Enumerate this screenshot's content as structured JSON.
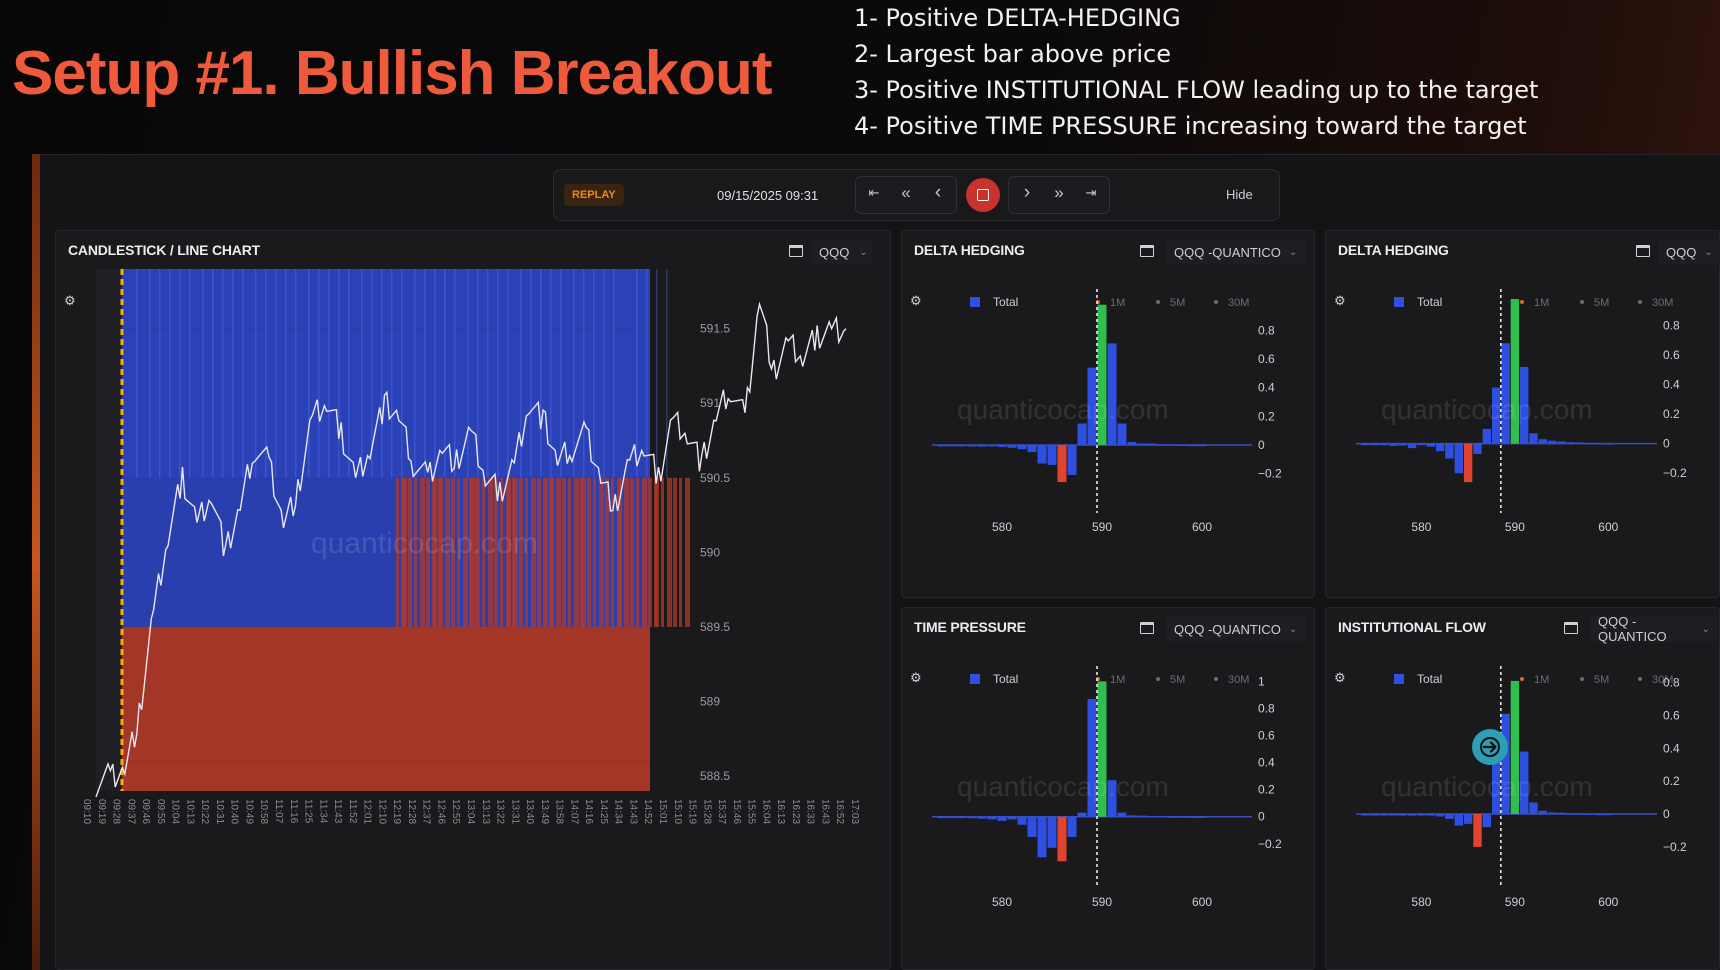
{
  "slide": {
    "title": "Setup #1. Bullish Breakout",
    "notes": [
      "1- Positive DELTA-HEDGING",
      "2- Largest bar above price",
      "3- Positive INSTITUTIONAL FLOW leading up to the target",
      "4- Positive TIME PRESSURE increasing toward the target"
    ]
  },
  "replay": {
    "badge": "REPLAY",
    "datetime": "09/15/2025 09:31",
    "buttons": {
      "first": "⇤",
      "rewind": "«",
      "prev": "‹",
      "next": "›",
      "fast_forward": "»",
      "last": "⇥"
    },
    "hide_label": "Hide"
  },
  "watermark": "quanticocap.com",
  "main_chart": {
    "title": "CANDLESTICK / LINE CHART",
    "symbol": "QQQ",
    "chart_data": {
      "type": "line",
      "title": "CANDLESTICK / LINE CHART",
      "y_ticks": [
        "591.5",
        "591",
        "590.5",
        "590",
        "589.5",
        "589",
        "588.5"
      ],
      "ylim": [
        588.4,
        591.9
      ],
      "x_ticks": [
        "09:10",
        "09:19",
        "09:28",
        "09:37",
        "09:46",
        "09:55",
        "10:04",
        "10:13",
        "10:22",
        "10:31",
        "10:40",
        "10:49",
        "10:58",
        "11:07",
        "11:16",
        "11:25",
        "11:34",
        "11:43",
        "11:52",
        "12:01",
        "12:10",
        "12:19",
        "12:28",
        "12:37",
        "12:46",
        "12:55",
        "13:04",
        "13:13",
        "13:22",
        "13:31",
        "13:40",
        "13:49",
        "13:58",
        "14:07",
        "14:16",
        "14:25",
        "14:34",
        "14:43",
        "14:52",
        "15:01",
        "15:10",
        "15:19",
        "15:28",
        "15:37",
        "15:46",
        "15:55",
        "16:04",
        "16:13",
        "16:23",
        "16:33",
        "16:43",
        "16:52",
        "17:03"
      ],
      "price": [
        588.45,
        588.5,
        588.55,
        588.9,
        589.6,
        590.1,
        590.5,
        590.2,
        590.4,
        590.0,
        590.3,
        590.7,
        590.6,
        590.2,
        590.4,
        590.9,
        591.0,
        590.8,
        590.5,
        590.7,
        591.0,
        590.9,
        590.6,
        590.5,
        590.7,
        590.6,
        590.8,
        590.5,
        590.4,
        590.6,
        591.0,
        590.9,
        590.6,
        590.7,
        590.8,
        590.5,
        590.3,
        590.6,
        590.7,
        590.5,
        590.9,
        590.8,
        590.6,
        590.9,
        591.1,
        590.9,
        591.7,
        591.2,
        591.4,
        591.3,
        591.45,
        591.5,
        591.5
      ],
      "heatmap_bands": [
        {
          "from": 591.5,
          "to": 591.9,
          "tone": "blue"
        },
        {
          "from": 590.5,
          "to": 591.5,
          "tone": "blue"
        },
        {
          "from": 589.5,
          "to": 590.5,
          "tone": "mixed"
        },
        {
          "from": 588.6,
          "to": 589.5,
          "tone": "red"
        },
        {
          "from": 588.4,
          "to": 588.6,
          "tone": "red"
        }
      ],
      "colors": {
        "blue": "#2d46c8",
        "red": "#b23a28",
        "price": "#e8e8ee",
        "marker": "#f0b400"
      }
    }
  },
  "panels": [
    {
      "id": "delta-hedging-1",
      "title": "DELTA HEDGING",
      "symbol": "QQQ -QUANTICO",
      "chart_data": {
        "type": "bar",
        "legend": [
          "Total",
          "1M",
          "5M",
          "30M"
        ],
        "x_ticks": [
          "580",
          "590",
          "600"
        ],
        "xlim": [
          573,
          602
        ],
        "y_ticks": [
          "0.8",
          "0.6",
          "0.4",
          "0.2",
          "0",
          "−0.2"
        ],
        "ylim": [
          -0.28,
          1.02
        ],
        "price_line": 589.5,
        "bin_width": 0.9,
        "bars": [
          {
            "x": 574,
            "v": -0.005,
            "c": "blue"
          },
          {
            "x": 575,
            "v": -0.01,
            "c": "blue"
          },
          {
            "x": 576,
            "v": -0.008,
            "c": "blue"
          },
          {
            "x": 577,
            "v": -0.01,
            "c": "blue"
          },
          {
            "x": 578,
            "v": -0.012,
            "c": "blue"
          },
          {
            "x": 579,
            "v": -0.01,
            "c": "blue"
          },
          {
            "x": 580,
            "v": -0.015,
            "c": "blue"
          },
          {
            "x": 581,
            "v": -0.02,
            "c": "blue"
          },
          {
            "x": 582,
            "v": -0.03,
            "c": "blue"
          },
          {
            "x": 583,
            "v": -0.05,
            "c": "blue"
          },
          {
            "x": 584,
            "v": -0.13,
            "c": "blue"
          },
          {
            "x": 585,
            "v": -0.14,
            "c": "blue"
          },
          {
            "x": 586,
            "v": -0.26,
            "c": "red"
          },
          {
            "x": 587,
            "v": -0.21,
            "c": "blue"
          },
          {
            "x": 588,
            "v": 0.15,
            "c": "blue"
          },
          {
            "x": 589,
            "v": 0.54,
            "c": "blue"
          },
          {
            "x": 590,
            "v": 0.98,
            "c": "green"
          },
          {
            "x": 591,
            "v": 0.71,
            "c": "blue"
          },
          {
            "x": 592,
            "v": 0.15,
            "c": "blue"
          },
          {
            "x": 593,
            "v": 0.02,
            "c": "blue"
          },
          {
            "x": 594,
            "v": 0.01,
            "c": "blue"
          },
          {
            "x": 595,
            "v": 0.01,
            "c": "blue"
          },
          {
            "x": 596,
            "v": 0.005,
            "c": "blue"
          },
          {
            "x": 597,
            "v": 0.005,
            "c": "blue"
          },
          {
            "x": 598,
            "v": 0.003,
            "c": "blue"
          },
          {
            "x": 599,
            "v": 0.002,
            "c": "blue"
          },
          {
            "x": 600,
            "v": 0.002,
            "c": "blue"
          }
        ]
      }
    },
    {
      "id": "delta-hedging-2",
      "title": "DELTA HEDGING",
      "symbol": "QQQ",
      "chart_data": {
        "type": "bar",
        "legend": [
          "Total",
          "1M",
          "5M",
          "30M"
        ],
        "x_ticks": [
          "580",
          "590",
          "600"
        ],
        "xlim": [
          573,
          602
        ],
        "y_ticks": [
          "0.8",
          "0.6",
          "0.4",
          "0.2",
          "0",
          "−0.2"
        ],
        "ylim": [
          -0.28,
          0.98
        ],
        "price_line": 588.5,
        "bin_width": 0.9,
        "bars": [
          {
            "x": 574,
            "v": -0.005,
            "c": "blue"
          },
          {
            "x": 575,
            "v": -0.01,
            "c": "blue"
          },
          {
            "x": 576,
            "v": -0.008,
            "c": "blue"
          },
          {
            "x": 577,
            "v": -0.015,
            "c": "blue"
          },
          {
            "x": 578,
            "v": -0.012,
            "c": "blue"
          },
          {
            "x": 579,
            "v": -0.03,
            "c": "blue"
          },
          {
            "x": 580,
            "v": -0.01,
            "c": "blue"
          },
          {
            "x": 581,
            "v": -0.02,
            "c": "blue"
          },
          {
            "x": 582,
            "v": -0.05,
            "c": "blue"
          },
          {
            "x": 583,
            "v": -0.1,
            "c": "blue"
          },
          {
            "x": 584,
            "v": -0.2,
            "c": "blue"
          },
          {
            "x": 585,
            "v": -0.26,
            "c": "red"
          },
          {
            "x": 586,
            "v": -0.07,
            "c": "blue"
          },
          {
            "x": 587,
            "v": 0.1,
            "c": "blue"
          },
          {
            "x": 588,
            "v": 0.38,
            "c": "blue"
          },
          {
            "x": 589,
            "v": 0.68,
            "c": "blue"
          },
          {
            "x": 590,
            "v": 0.98,
            "c": "green"
          },
          {
            "x": 591,
            "v": 0.52,
            "c": "blue"
          },
          {
            "x": 592,
            "v": 0.07,
            "c": "blue"
          },
          {
            "x": 593,
            "v": 0.03,
            "c": "blue"
          },
          {
            "x": 594,
            "v": 0.02,
            "c": "blue"
          },
          {
            "x": 595,
            "v": 0.015,
            "c": "blue"
          },
          {
            "x": 596,
            "v": 0.01,
            "c": "blue"
          },
          {
            "x": 597,
            "v": 0.008,
            "c": "blue"
          },
          {
            "x": 598,
            "v": 0.005,
            "c": "blue"
          },
          {
            "x": 599,
            "v": 0.005,
            "c": "blue"
          },
          {
            "x": 600,
            "v": 0.003,
            "c": "blue"
          }
        ]
      }
    },
    {
      "id": "time-pressure",
      "title": "TIME PRESSURE",
      "symbol": "QQQ -QUANTICO",
      "chart_data": {
        "type": "bar",
        "legend": [
          "Total",
          "1M",
          "5M",
          "30M"
        ],
        "x_ticks": [
          "580",
          "590",
          "600"
        ],
        "xlim": [
          573,
          602
        ],
        "y_ticks": [
          "1",
          "0.8",
          "0.6",
          "0.4",
          "0.2",
          "0",
          "−0.2"
        ],
        "ylim": [
          -0.32,
          1.04
        ],
        "price_line": 589.5,
        "bin_width": 0.9,
        "bars": [
          {
            "x": 574,
            "v": -0.005,
            "c": "blue"
          },
          {
            "x": 575,
            "v": -0.01,
            "c": "blue"
          },
          {
            "x": 576,
            "v": -0.01,
            "c": "blue"
          },
          {
            "x": 577,
            "v": -0.01,
            "c": "blue"
          },
          {
            "x": 578,
            "v": -0.015,
            "c": "blue"
          },
          {
            "x": 579,
            "v": -0.02,
            "c": "blue"
          },
          {
            "x": 580,
            "v": -0.03,
            "c": "blue"
          },
          {
            "x": 581,
            "v": -0.02,
            "c": "blue"
          },
          {
            "x": 582,
            "v": -0.06,
            "c": "blue"
          },
          {
            "x": 583,
            "v": -0.15,
            "c": "blue"
          },
          {
            "x": 584,
            "v": -0.3,
            "c": "blue"
          },
          {
            "x": 585,
            "v": -0.23,
            "c": "blue"
          },
          {
            "x": 586,
            "v": -0.33,
            "c": "red"
          },
          {
            "x": 587,
            "v": -0.15,
            "c": "blue"
          },
          {
            "x": 588,
            "v": 0.03,
            "c": "blue"
          },
          {
            "x": 589,
            "v": 0.87,
            "c": "blue"
          },
          {
            "x": 590,
            "v": 1.0,
            "c": "green"
          },
          {
            "x": 591,
            "v": 0.27,
            "c": "blue"
          },
          {
            "x": 592,
            "v": 0.03,
            "c": "blue"
          },
          {
            "x": 593,
            "v": 0.01,
            "c": "blue"
          },
          {
            "x": 594,
            "v": 0.008,
            "c": "blue"
          },
          {
            "x": 595,
            "v": 0.005,
            "c": "blue"
          },
          {
            "x": 596,
            "v": 0.005,
            "c": "blue"
          },
          {
            "x": 597,
            "v": 0.003,
            "c": "blue"
          },
          {
            "x": 598,
            "v": 0.003,
            "c": "blue"
          },
          {
            "x": 599,
            "v": 0.002,
            "c": "blue"
          },
          {
            "x": 600,
            "v": 0.002,
            "c": "blue"
          }
        ]
      }
    },
    {
      "id": "institutional-flow",
      "title": "INSTITUTIONAL FLOW",
      "symbol": "QQQ -QUANTICO",
      "chart_data": {
        "type": "bar",
        "legend": [
          "Total",
          "1M",
          "5M",
          "30M"
        ],
        "x_ticks": [
          "580",
          "590",
          "600"
        ],
        "xlim": [
          573,
          602
        ],
        "y_ticks": [
          "0.8",
          "0.6",
          "0.4",
          "0.2",
          "0",
          "−0.2"
        ],
        "ylim": [
          -0.28,
          0.84
        ],
        "price_line": 588.5,
        "bin_width": 0.9,
        "bars": [
          {
            "x": 574,
            "v": -0.003,
            "c": "blue"
          },
          {
            "x": 575,
            "v": -0.005,
            "c": "blue"
          },
          {
            "x": 576,
            "v": -0.005,
            "c": "blue"
          },
          {
            "x": 577,
            "v": -0.008,
            "c": "blue"
          },
          {
            "x": 578,
            "v": -0.01,
            "c": "blue"
          },
          {
            "x": 579,
            "v": -0.01,
            "c": "blue"
          },
          {
            "x": 580,
            "v": -0.01,
            "c": "blue"
          },
          {
            "x": 581,
            "v": -0.01,
            "c": "blue"
          },
          {
            "x": 582,
            "v": -0.015,
            "c": "blue"
          },
          {
            "x": 583,
            "v": -0.03,
            "c": "blue"
          },
          {
            "x": 584,
            "v": -0.07,
            "c": "blue"
          },
          {
            "x": 585,
            "v": -0.06,
            "c": "blue"
          },
          {
            "x": 586,
            "v": -0.2,
            "c": "red"
          },
          {
            "x": 587,
            "v": -0.08,
            "c": "blue"
          },
          {
            "x": 588,
            "v": 0.5,
            "c": "blue"
          },
          {
            "x": 589,
            "v": 0.61,
            "c": "blue"
          },
          {
            "x": 590,
            "v": 0.81,
            "c": "green"
          },
          {
            "x": 591,
            "v": 0.38,
            "c": "blue"
          },
          {
            "x": 592,
            "v": 0.07,
            "c": "blue"
          },
          {
            "x": 593,
            "v": 0.02,
            "c": "blue"
          },
          {
            "x": 594,
            "v": 0.01,
            "c": "blue"
          },
          {
            "x": 595,
            "v": 0.008,
            "c": "blue"
          },
          {
            "x": 596,
            "v": 0.005,
            "c": "blue"
          },
          {
            "x": 597,
            "v": 0.005,
            "c": "blue"
          },
          {
            "x": 598,
            "v": 0.003,
            "c": "blue"
          },
          {
            "x": 599,
            "v": 0.002,
            "c": "blue"
          },
          {
            "x": 600,
            "v": 0.002,
            "c": "blue"
          }
        ]
      }
    }
  ],
  "colors": {
    "blue": "#2f4fe0",
    "green": "#2fbf4f",
    "red": "#e0432e",
    "legend_dot": "#e06a2a",
    "price_line": "#e8e8e8",
    "zero_line": "#3b4fb8",
    "cursor": "#2a9fb5"
  },
  "icons": {
    "settings": "gear-icon",
    "panel": "window-icon",
    "dropdown": "chevron-down-icon",
    "cursor": "arrow-right-icon"
  }
}
